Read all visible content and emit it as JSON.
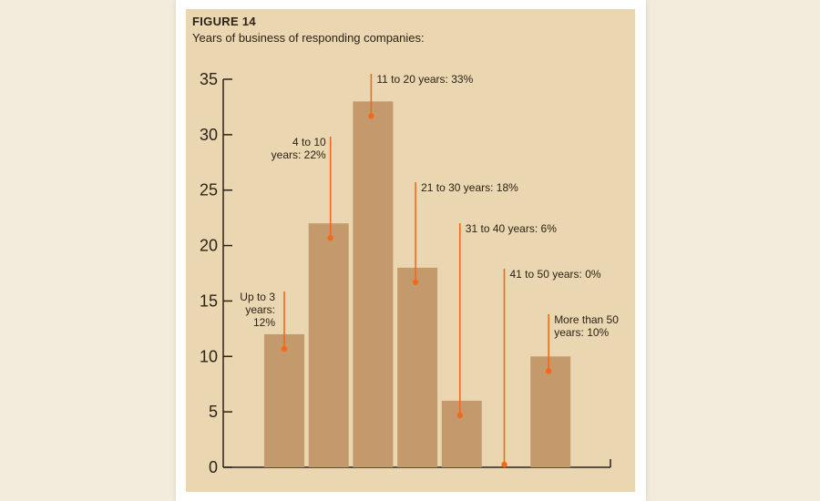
{
  "figure": {
    "label": "FIGURE 14",
    "subtitle": "Years of business of responding companies:"
  },
  "colors": {
    "background": "#f3ecdd",
    "panel": "#ead6b0",
    "bar": "#c49a6c",
    "leader": "#f06a1e",
    "axis": "#2c2316"
  },
  "chart_data": {
    "type": "bar",
    "title": "Years of business of responding companies:",
    "xlabel": "",
    "ylabel": "",
    "ylim": [
      0,
      35
    ],
    "yticks": [
      0,
      5,
      10,
      15,
      20,
      25,
      30,
      35
    ],
    "grid": false,
    "legend": "none",
    "categories": [
      "Up to 3 years",
      "4 to 10 years",
      "11 to 20 years",
      "21 to 30 years",
      "31 to 40 years",
      "41 to 50 years",
      "More than 50 years"
    ],
    "values": [
      12,
      22,
      33,
      18,
      6,
      0,
      10
    ],
    "annotations": [
      [
        "Up to 3",
        "years:",
        "12%"
      ],
      [
        "4 to 10",
        "years: 22%"
      ],
      [
        "11 to 20 years: 33%"
      ],
      [
        "21 to 30 years: 18%"
      ],
      [
        "31 to 40 years: 6%"
      ],
      [
        "41 to 50 years: 0%"
      ],
      [
        "More than 50",
        "years: 10%"
      ]
    ]
  }
}
